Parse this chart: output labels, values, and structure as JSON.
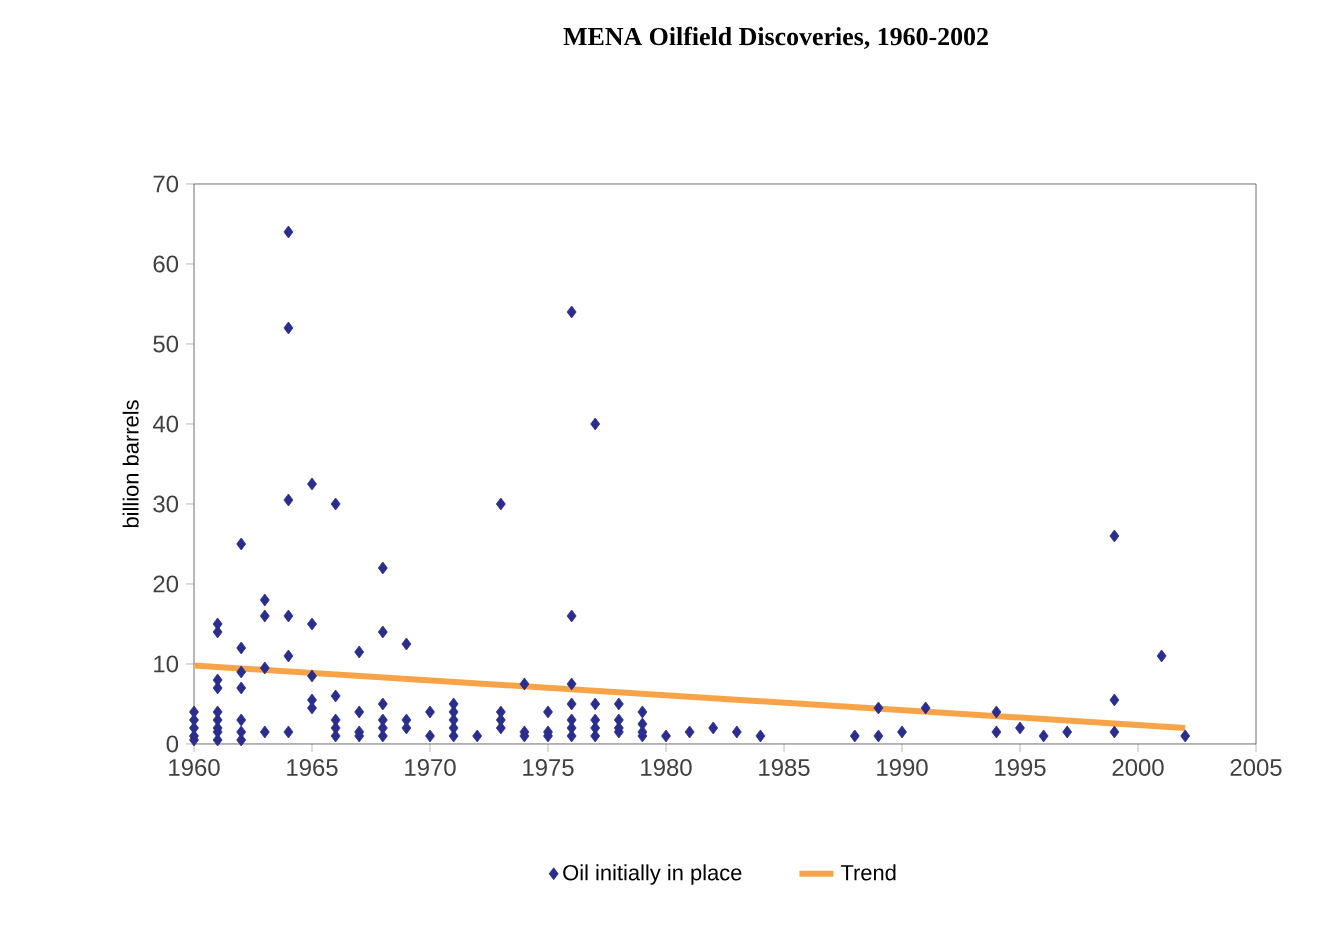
{
  "chart_data": {
    "type": "scatter",
    "title": "MENA Oilfield Discoveries, 1960-2002",
    "ylabel": "billion barrels",
    "xlim": [
      1960,
      2005
    ],
    "xticks": [
      1960,
      1965,
      1970,
      1975,
      1980,
      1985,
      1990,
      1995,
      2000,
      2005
    ],
    "ylim": [
      0,
      70
    ],
    "yticks": [
      0,
      10,
      20,
      30,
      40,
      50,
      60,
      70
    ],
    "grid": false,
    "legend": "bottom",
    "series": [
      {
        "name": "Oil initially in place",
        "marker": "diamond",
        "color": "#2b2d8c",
        "x": [
          1960,
          1960,
          1960,
          1960,
          1960,
          1961,
          1961,
          1961,
          1961,
          1961,
          1961,
          1961,
          1961,
          1961,
          1962,
          1962,
          1962,
          1962,
          1962,
          1962,
          1962,
          1963,
          1963,
          1963,
          1963,
          1964,
          1964,
          1964,
          1964,
          1964,
          1964,
          1965,
          1965,
          1965,
          1965,
          1965,
          1966,
          1966,
          1966,
          1966,
          1966,
          1967,
          1967,
          1967,
          1967,
          1968,
          1968,
          1968,
          1968,
          1968,
          1968,
          1969,
          1969,
          1969,
          1970,
          1970,
          1971,
          1971,
          1971,
          1971,
          1971,
          1972,
          1973,
          1973,
          1973,
          1973,
          1974,
          1974,
          1974,
          1975,
          1975,
          1975,
          1976,
          1976,
          1976,
          1976,
          1976,
          1976,
          1976,
          1977,
          1977,
          1977,
          1977,
          1977,
          1978,
          1978,
          1978,
          1978,
          1979,
          1979,
          1979,
          1979,
          1980,
          1981,
          1982,
          1983,
          1984,
          1988,
          1989,
          1989,
          1990,
          1991,
          1994,
          1994,
          1995,
          1996,
          1997,
          1999,
          1999,
          1999,
          2001,
          2002
        ],
        "values": [
          4,
          3,
          2,
          1,
          0.5,
          15,
          14,
          8,
          7,
          4,
          3,
          2,
          1.5,
          0.5,
          25,
          12,
          9,
          7,
          3,
          1.5,
          0.5,
          18,
          16,
          9.5,
          1.5,
          64,
          52,
          30.5,
          16,
          11,
          1.5,
          32.5,
          15,
          8.5,
          5.5,
          4.5,
          30,
          6,
          3,
          2,
          1,
          11.5,
          4,
          1.5,
          1,
          22,
          14,
          5,
          3,
          2,
          1,
          12.5,
          3,
          2,
          4,
          1,
          5,
          4,
          3,
          2,
          1,
          1,
          30,
          4,
          3,
          2,
          7.5,
          1.5,
          1,
          4,
          1.5,
          1,
          54,
          16,
          7.5,
          5,
          3,
          2,
          1,
          40,
          5,
          3,
          2,
          1,
          5,
          3,
          2,
          1.5,
          4,
          2.5,
          1.5,
          1,
          1,
          1.5,
          2,
          1.5,
          1,
          1,
          4.5,
          1,
          1.5,
          4.5,
          4,
          1.5,
          2,
          1,
          1.5,
          26,
          5.5,
          1.5,
          11,
          1
        ]
      },
      {
        "name": "Trend",
        "type": "line",
        "marker": "none",
        "color": "#f7a448",
        "x": [
          1960,
          2002
        ],
        "values": [
          9.8,
          2.0
        ]
      }
    ]
  }
}
